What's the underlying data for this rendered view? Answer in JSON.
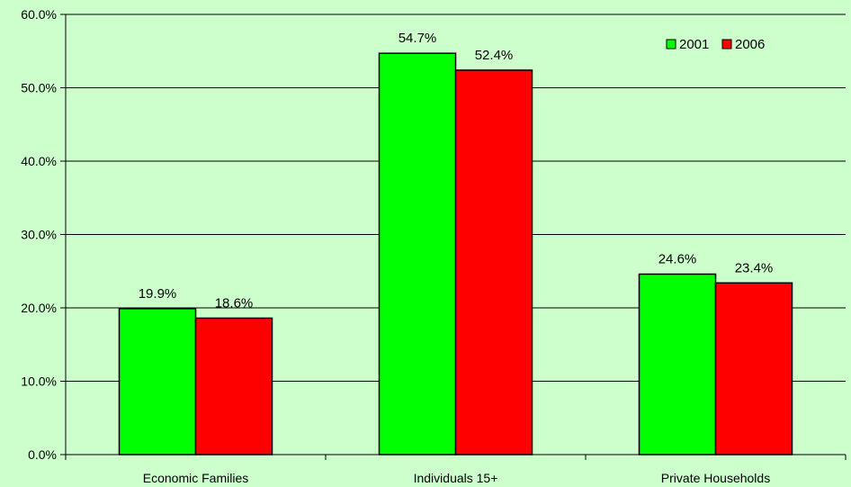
{
  "chart_data": {
    "type": "bar",
    "categories": [
      "Economic Families",
      "Individuals 15+",
      "Private Households"
    ],
    "series": [
      {
        "name": "2001",
        "values": [
          19.9,
          54.7,
          24.6
        ],
        "color": "#00ff00"
      },
      {
        "name": "2006",
        "values": [
          18.6,
          52.4,
          23.4
        ],
        "color": "#ff0000"
      }
    ],
    "data_labels": [
      [
        "19.9%",
        "54.7%",
        "24.6%"
      ],
      [
        "18.6%",
        "52.4%",
        "23.4%"
      ]
    ],
    "y_ticks": [
      "0.0%",
      "10.0%",
      "20.0%",
      "30.0%",
      "40.0%",
      "50.0%",
      "60.0%"
    ],
    "ylim": [
      0,
      60
    ],
    "title": "",
    "xlabel": "",
    "ylabel": "",
    "grid": true,
    "legend": {
      "position": "top-right",
      "entries": [
        "2001",
        "2006"
      ]
    },
    "background_color": "#ccffcc",
    "bar_outline_color": "#000000",
    "axis_color": "#000000"
  }
}
